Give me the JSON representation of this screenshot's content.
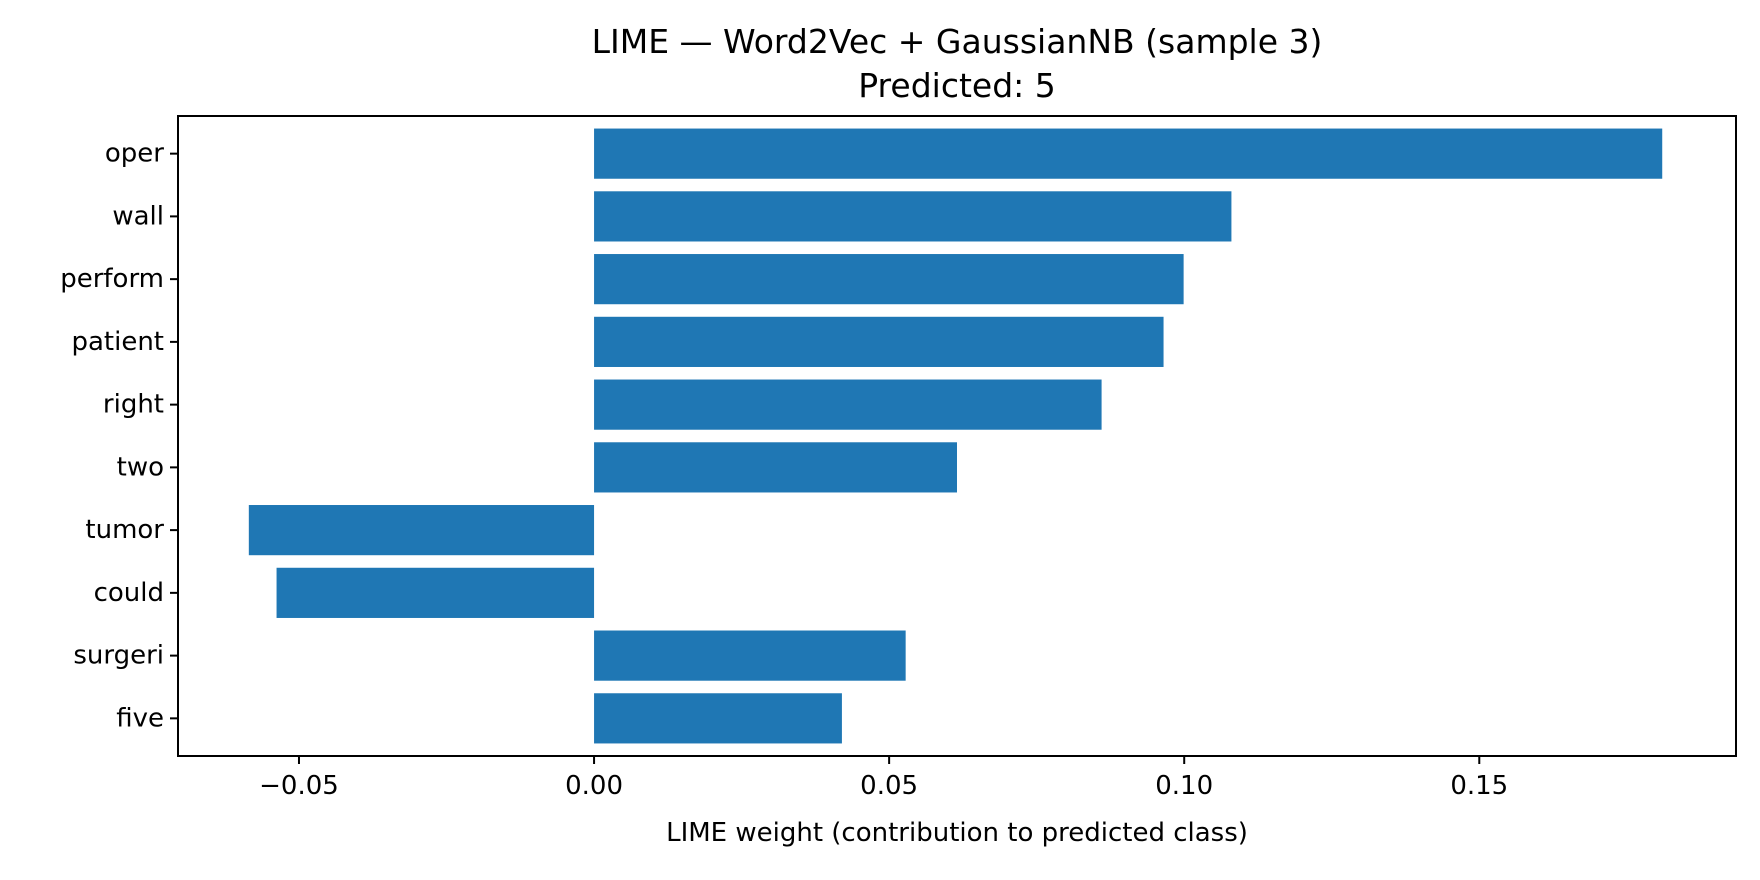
{
  "chart_data": {
    "type": "bar",
    "orientation": "horizontal",
    "title": "LIME — Word2Vec + GaussianNB (sample 3)",
    "subtitle": "Predicted: 5",
    "xlabel": "LIME weight (contribution to predicted class)",
    "ylabel": "",
    "categories": [
      "oper",
      "wall",
      "perform",
      "patient",
      "right",
      "two",
      "tumor",
      "could",
      "surgeri",
      "five"
    ],
    "values": [
      0.181,
      0.108,
      0.0999,
      0.0965,
      0.086,
      0.0615,
      -0.0585,
      -0.0538,
      0.0528,
      0.042
    ],
    "xlim": [
      -0.0705,
      0.1935
    ],
    "xticks": [
      -0.05,
      0.0,
      0.05,
      0.1,
      0.15
    ],
    "xtick_labels": [
      "−0.05",
      "0.00",
      "0.05",
      "0.10",
      "0.15"
    ],
    "bar_color": "#1f77b4",
    "grid": false,
    "legend": "none"
  }
}
